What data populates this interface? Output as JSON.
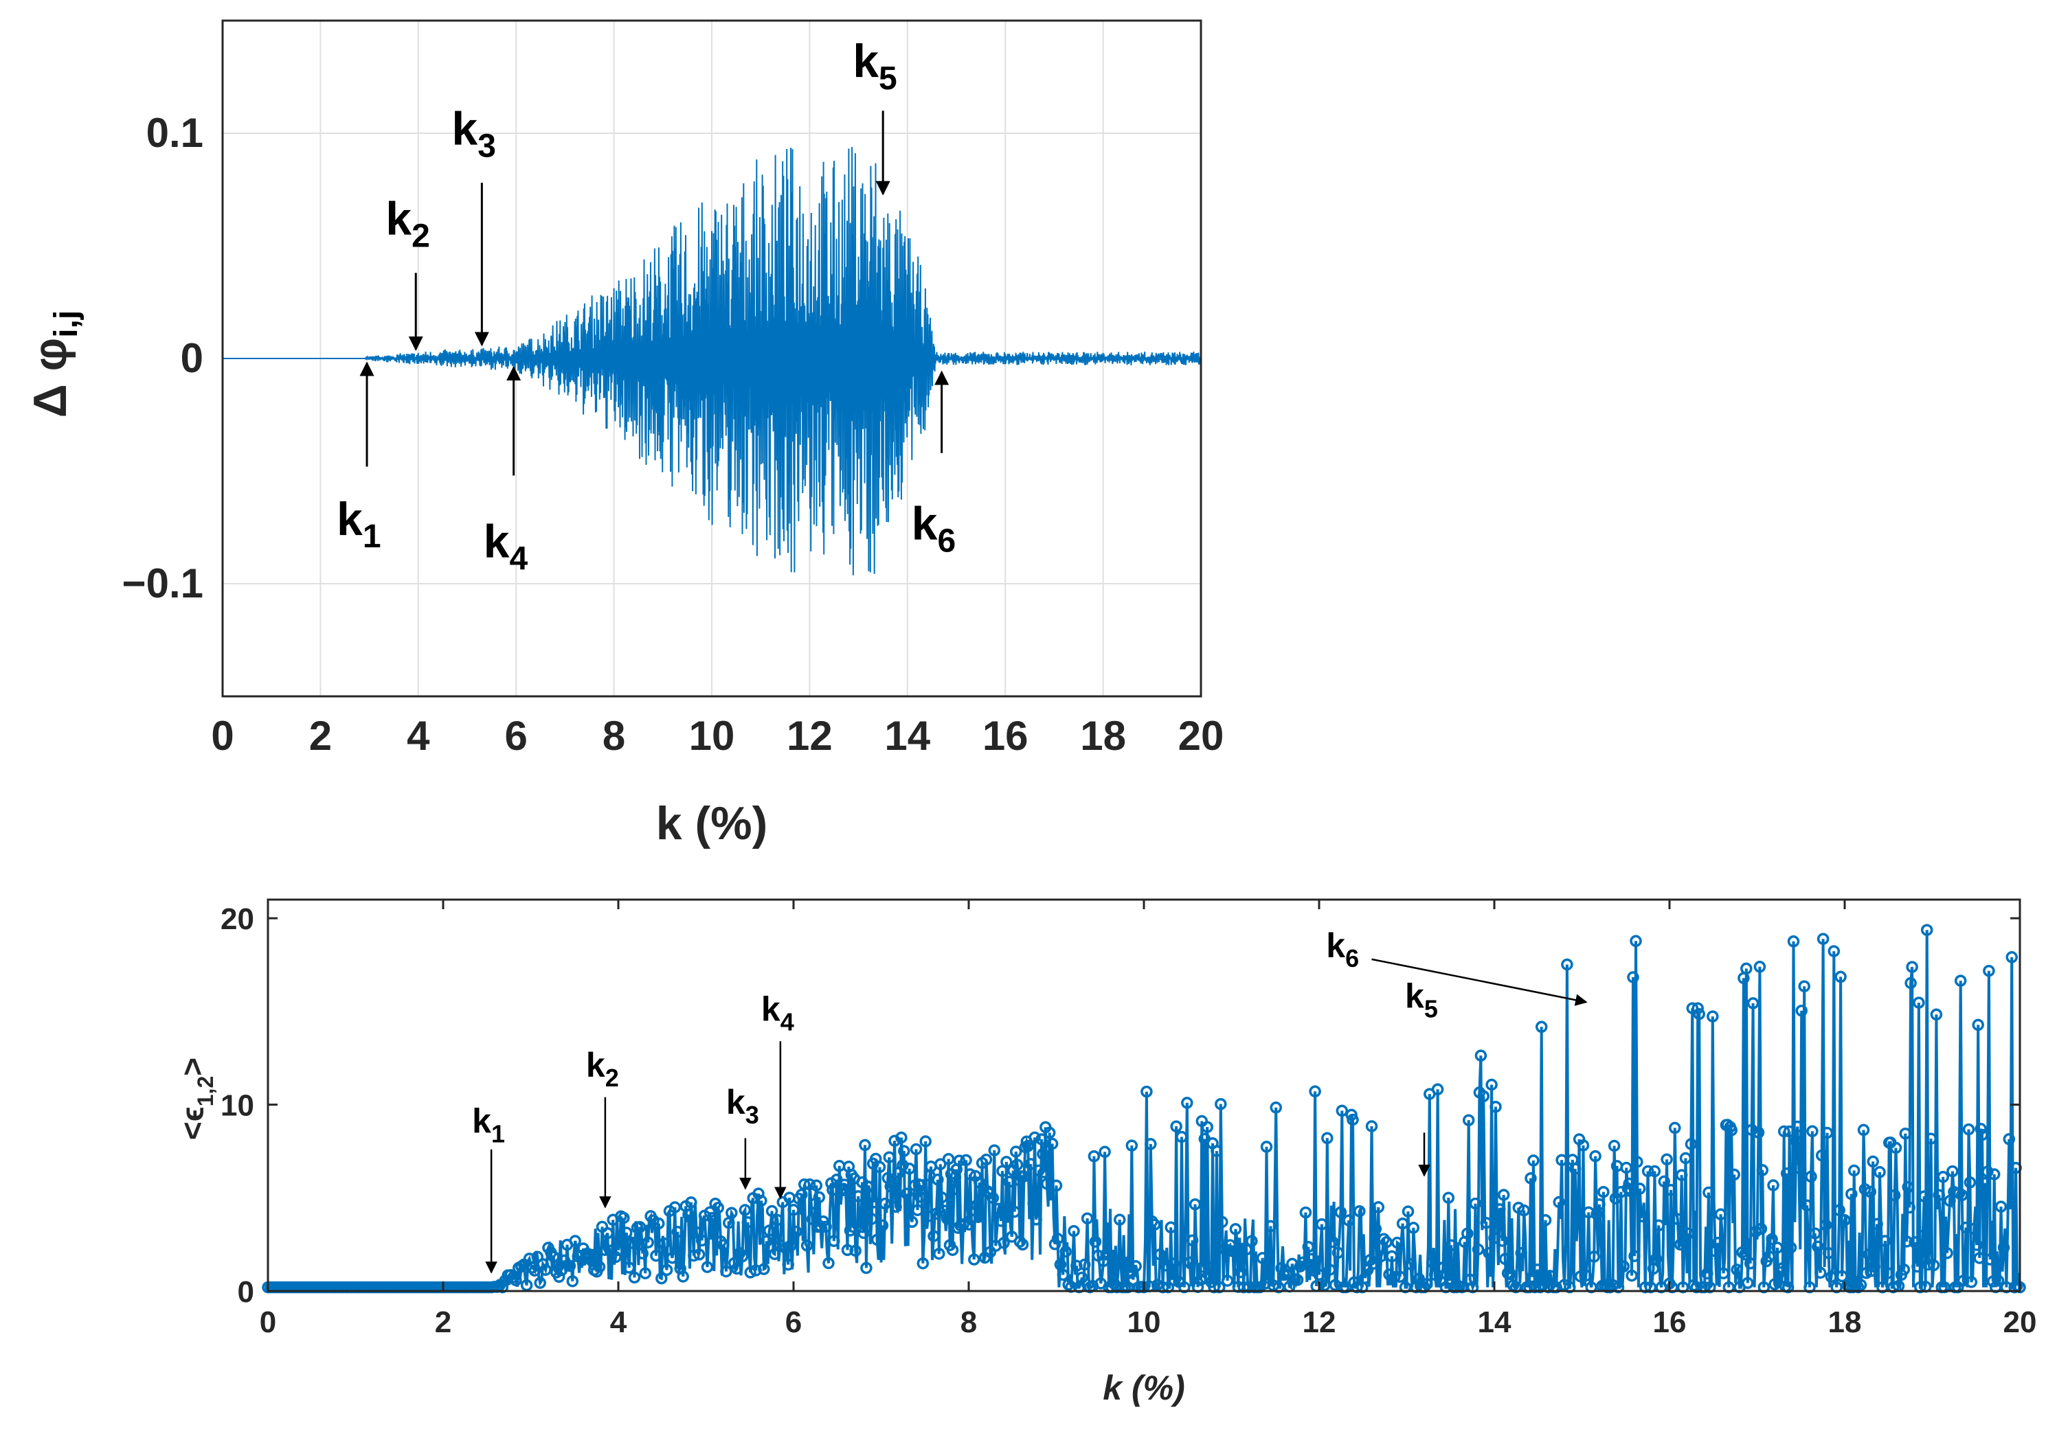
{
  "chart_data": [
    {
      "type": "line",
      "xlabel": "k (%)",
      "ylabel_main": "Δ φ",
      "ylabel_sub": "i,j",
      "xlim": [
        0,
        20
      ],
      "ylim": [
        -0.15,
        0.15
      ],
      "xticks": [
        "0",
        "2",
        "4",
        "6",
        "8",
        "10",
        "12",
        "14",
        "16",
        "18",
        "20"
      ],
      "yticks": [
        "-0.1",
        "0",
        "0.1"
      ],
      "grid": true,
      "color": "#0072BD",
      "series": [
        {
          "x": [
            0,
            2.9,
            3.0,
            3.5,
            4.0,
            4.5,
            5.0,
            5.5,
            6.0,
            6.5,
            7.0,
            7.5,
            8.0,
            8.5,
            9.0,
            9.5,
            10.0,
            10.5,
            11.0,
            11.5,
            11.8,
            12.0,
            12.5,
            13.0,
            13.3,
            13.6,
            14.0,
            14.3,
            14.6,
            15.0,
            16.0,
            17.0,
            18.0,
            19.0,
            20.0
          ],
          "amp": [
            0,
            0,
            0.001,
            0.002,
            0.003,
            0.004,
            0.004,
            0.005,
            0.006,
            0.012,
            0.02,
            0.028,
            0.035,
            0.045,
            0.055,
            0.065,
            0.075,
            0.08,
            0.09,
            0.095,
            0.1,
            0.095,
            0.09,
            0.1,
            0.1,
            0.08,
            0.06,
            0.04,
            0.003,
            0.003,
            0.003,
            0.003,
            0.003,
            0.003,
            0.003
          ]
        }
      ],
      "annotations": [
        {
          "label": "k",
          "sub": "1",
          "x": 2.95,
          "dir": "up"
        },
        {
          "label": "k",
          "sub": "2",
          "x": 3.95,
          "dir": "down"
        },
        {
          "label": "k",
          "sub": "3",
          "x": 5.3,
          "dir": "down"
        },
        {
          "label": "k",
          "sub": "4",
          "x": 5.95,
          "dir": "up"
        },
        {
          "label": "k",
          "sub": "5",
          "x": 13.5,
          "dir": "down"
        },
        {
          "label": "k",
          "sub": "6",
          "x": 14.7,
          "dir": "up"
        }
      ]
    },
    {
      "type": "line",
      "marker": "circle",
      "xlabel": "k (%)",
      "ylabel": "<ϵ1,2>",
      "ylabel_main": "<ϵ",
      "ylabel_sub": "1,2",
      "ylabel_end": ">",
      "xlim": [
        0,
        20
      ],
      "ylim": [
        0,
        21
      ],
      "xticks": [
        "0",
        "2",
        "4",
        "6",
        "8",
        "10",
        "12",
        "14",
        "16",
        "18",
        "20"
      ],
      "yticks": [
        "0",
        "10",
        "20"
      ],
      "grid": false,
      "color": "#0072BD",
      "envelope": {
        "x": [
          0,
          2.5,
          2.6,
          3.0,
          3.5,
          4.0,
          5.0,
          6.0,
          7.0,
          8.0,
          9.0,
          10.0,
          11.0,
          12.0,
          13.0,
          14.0,
          15.0,
          16.0,
          17.0,
          18.0,
          19.0,
          20.0
        ],
        "y": [
          0.2,
          0.2,
          0.5,
          2,
          3.2,
          4,
          5,
          5.5,
          8.5,
          8,
          9,
          11,
          10,
          11,
          10.5,
          14,
          19,
          19.5,
          20,
          20,
          20,
          19
        ]
      },
      "annotations": [
        {
          "label": "k",
          "sub": "1",
          "x": 2.55,
          "y": 1.0
        },
        {
          "label": "k",
          "sub": "2",
          "x": 3.85,
          "y": 4.5
        },
        {
          "label": "k",
          "sub": "3",
          "x": 5.45,
          "y": 5.5
        },
        {
          "label": "k",
          "sub": "4",
          "x": 5.85,
          "y": 5.0
        },
        {
          "label": "k",
          "sub": "5",
          "x": 13.2,
          "y": 6.2
        },
        {
          "label": "k",
          "sub": "6",
          "x": 15.05,
          "y": 15.5
        }
      ]
    }
  ]
}
